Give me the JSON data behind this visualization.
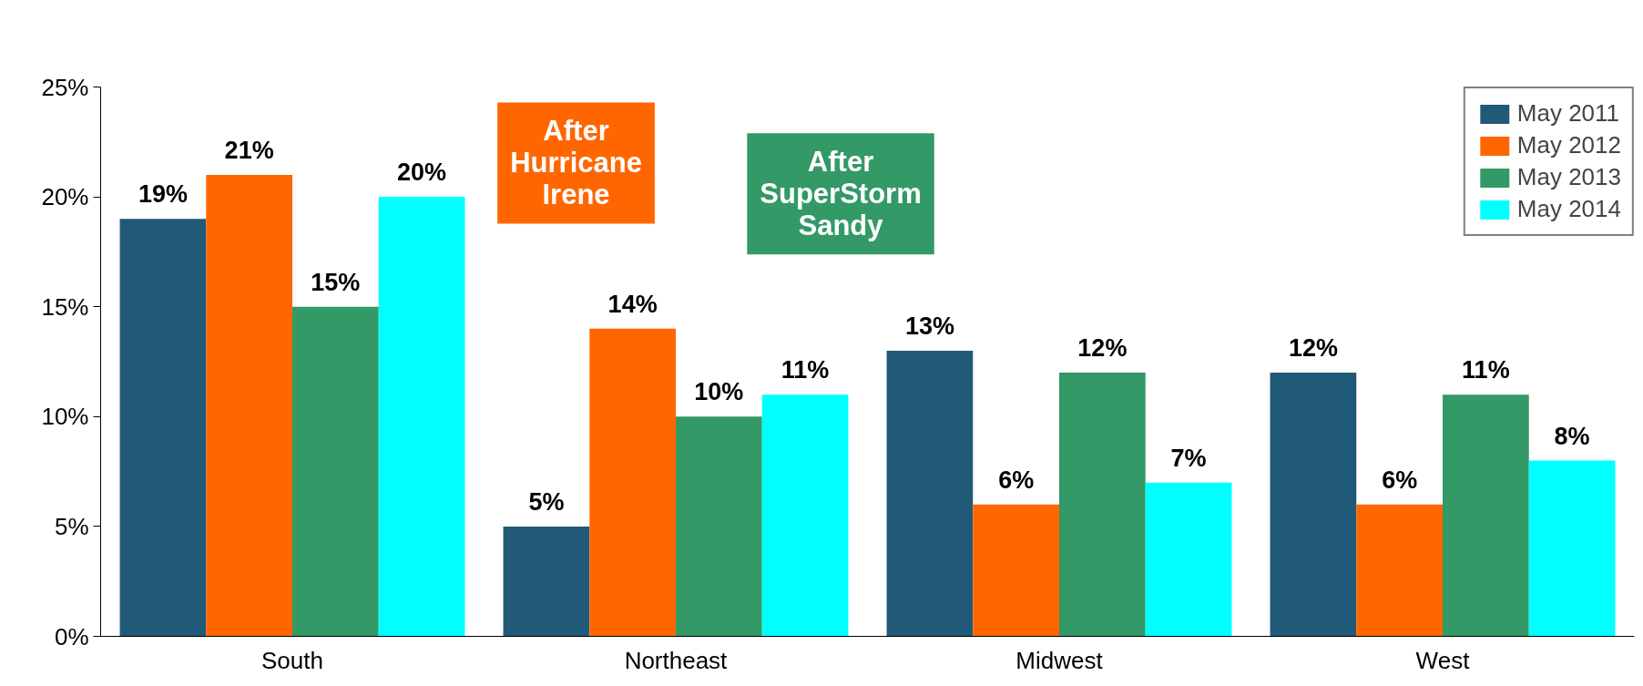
{
  "chart_data": {
    "type": "bar",
    "categories": [
      "South",
      "Northeast",
      "Midwest",
      "West"
    ],
    "series": [
      {
        "name": "May 2011",
        "color": "#215a78",
        "values": [
          19,
          5,
          13,
          12
        ],
        "value_labels": [
          "19%",
          "5%",
          "13%",
          "12%"
        ]
      },
      {
        "name": "May 2012",
        "color": "#ff6600",
        "values": [
          21,
          14,
          6,
          6
        ],
        "value_labels": [
          "21%",
          "14%",
          "6%",
          "6%"
        ]
      },
      {
        "name": "May 2013",
        "color": "#339966",
        "values": [
          15,
          10,
          12,
          11
        ],
        "value_labels": [
          "15%",
          "10%",
          "12%",
          "11%"
        ]
      },
      {
        "name": "May 2014",
        "color": "#00ffff",
        "values": [
          20,
          11,
          7,
          8
        ],
        "value_labels": [
          "20%",
          "11%",
          "7%",
          "8%"
        ]
      }
    ],
    "ylim": [
      0,
      25
    ],
    "yticks": [
      {
        "value": 0,
        "label": "0%"
      },
      {
        "value": 5,
        "label": "5%"
      },
      {
        "value": 10,
        "label": "10%"
      },
      {
        "value": 15,
        "label": "15%"
      },
      {
        "value": 20,
        "label": "20%"
      },
      {
        "value": 25,
        "label": "25%"
      }
    ],
    "annotations": [
      "After\nHurricane\nIrene",
      "After\nSuperStorm\nSandy"
    ],
    "grid": false,
    "legend": "top right"
  }
}
